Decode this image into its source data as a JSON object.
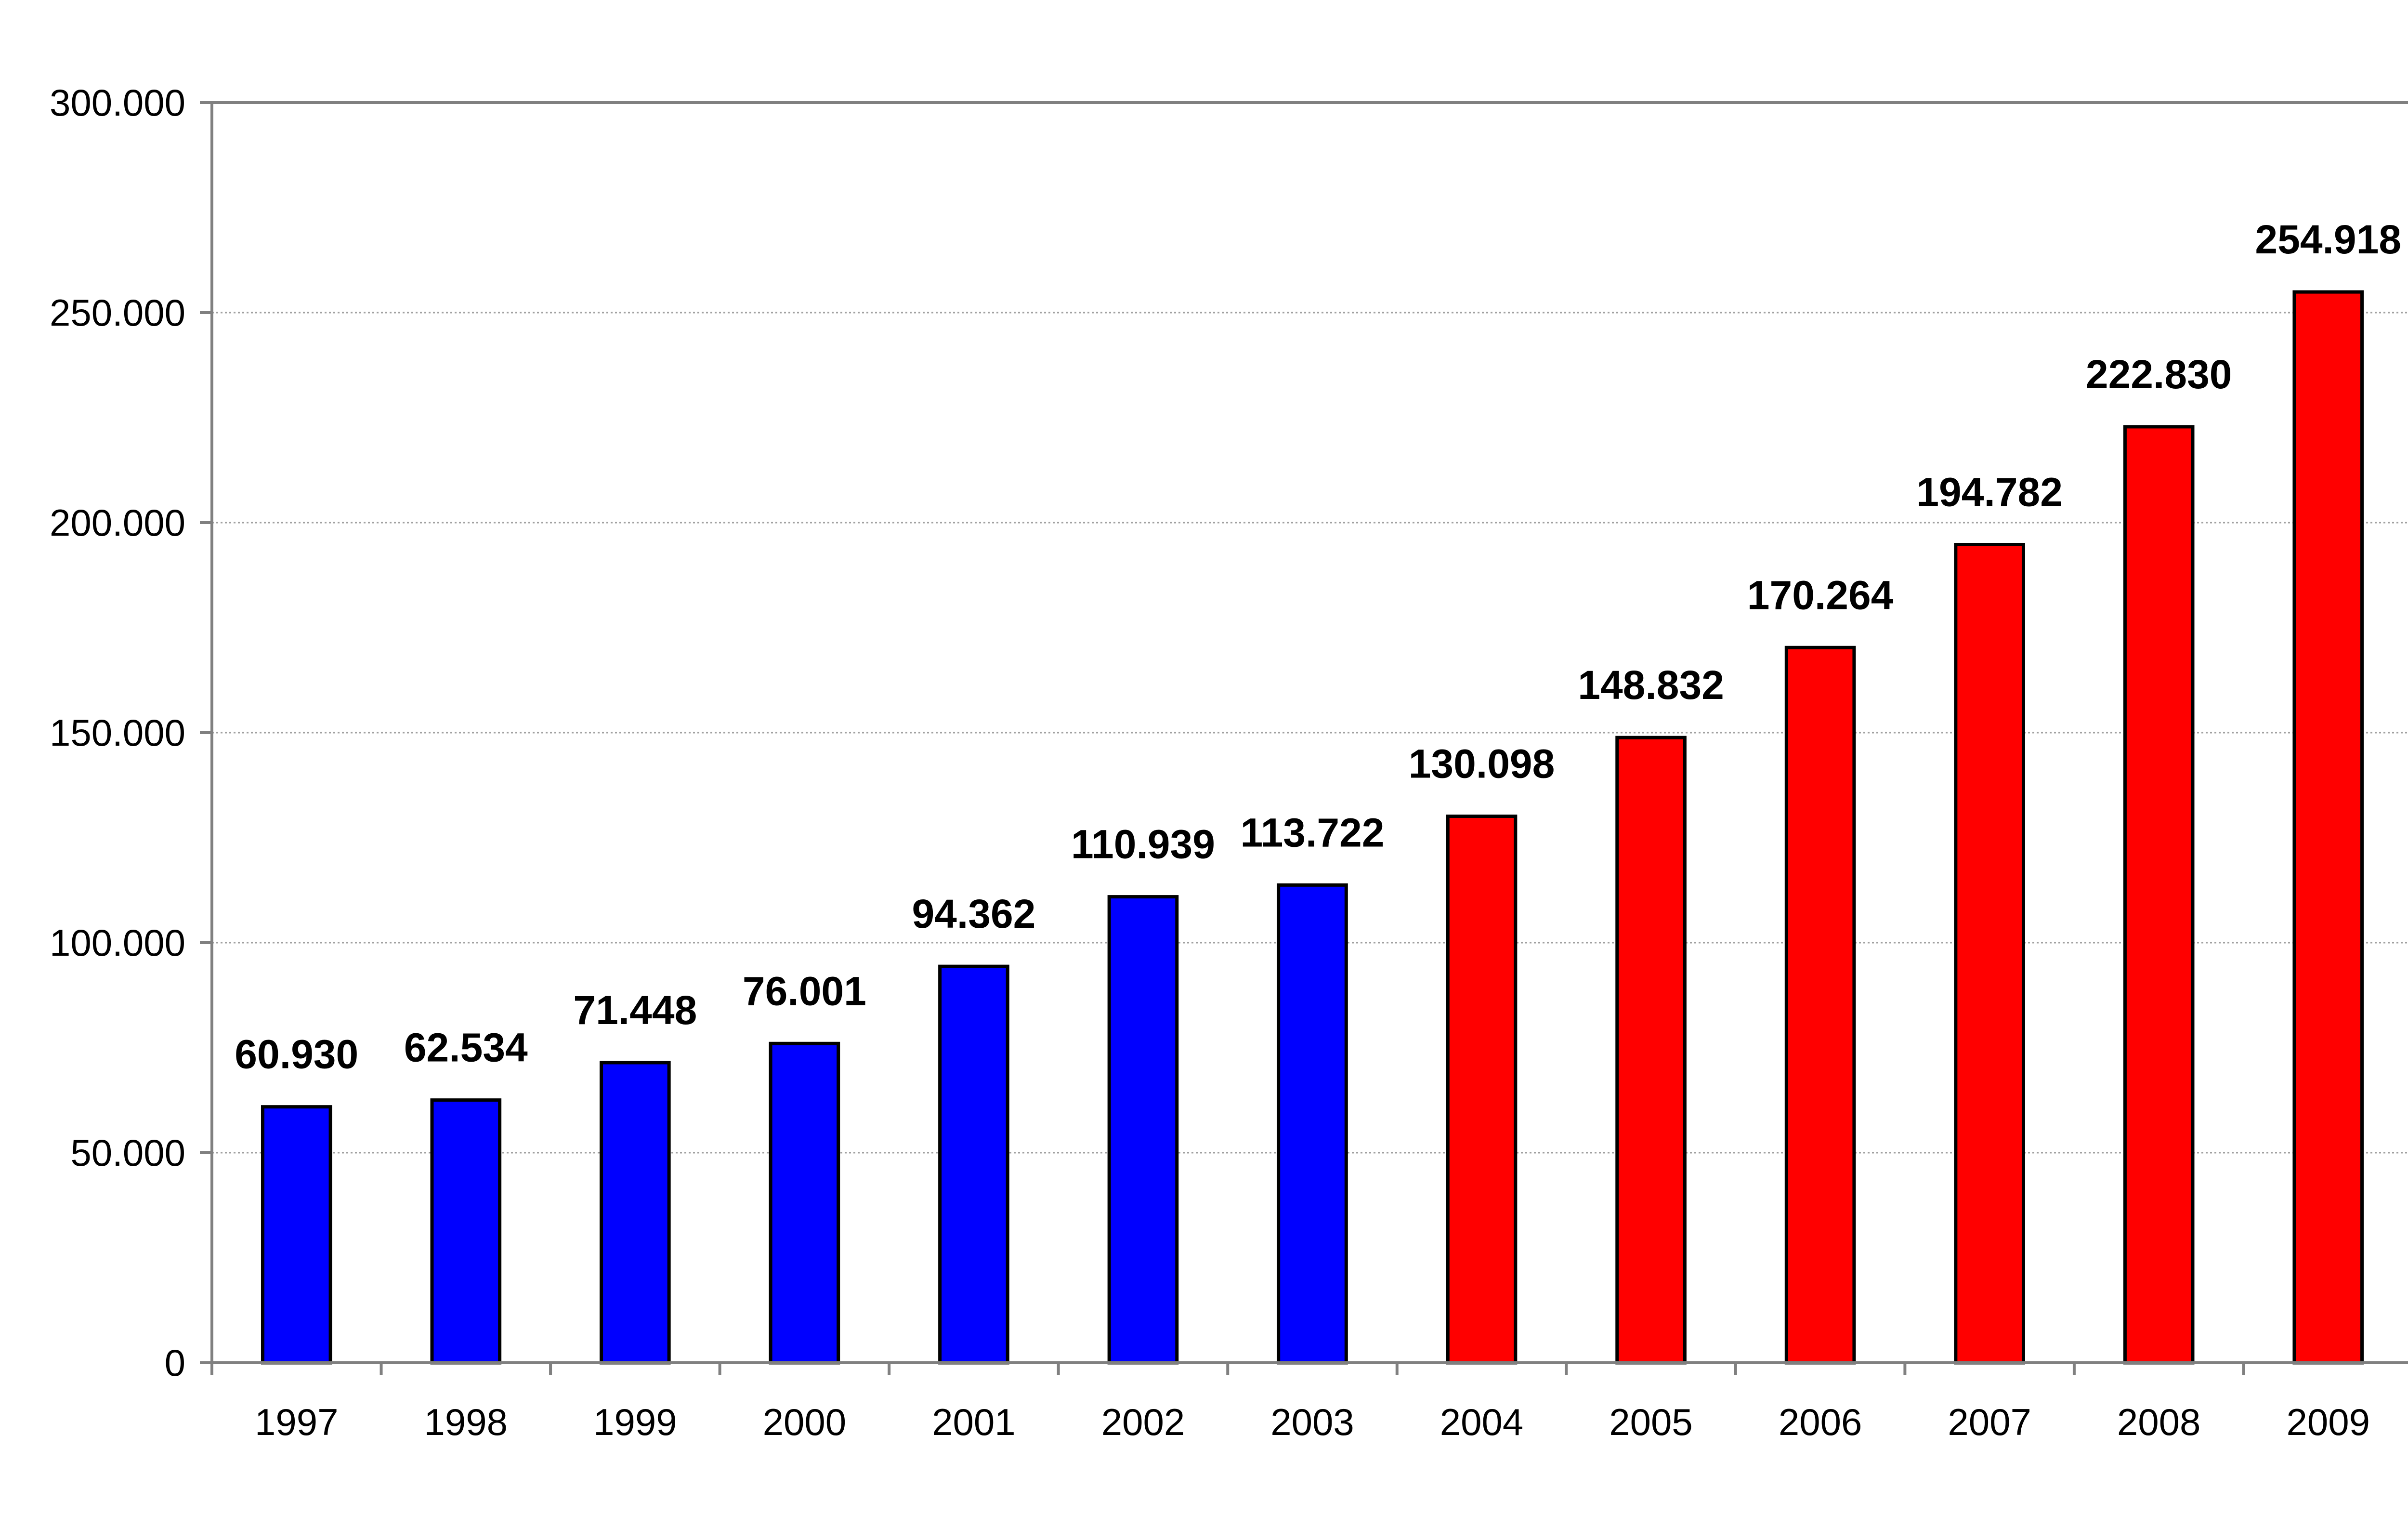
{
  "chart_data": {
    "type": "bar",
    "title": "",
    "xlabel": "",
    "ylabel": "",
    "categories": [
      "1997",
      "1998",
      "1999",
      "2000",
      "2001",
      "2002",
      "2003",
      "2004",
      "2005",
      "2006",
      "2007",
      "2008",
      "2009"
    ],
    "values": [
      60930,
      62534,
      71448,
      76001,
      94362,
      110939,
      113722,
      130098,
      148832,
      170264,
      194782,
      222830,
      254918
    ],
    "value_labels": [
      "60.930",
      "62.534",
      "71.448",
      "76.001",
      "94.362",
      "110.939",
      "113.722",
      "130.098",
      "148.832",
      "170.264",
      "194.782",
      "222.830",
      "254.918"
    ],
    "ylim": [
      0,
      300000
    ],
    "y_ticks": [
      0,
      50000,
      100000,
      150000,
      200000,
      250000,
      300000
    ],
    "y_tick_labels": [
      "0",
      "50.000",
      "100.000",
      "150.000",
      "200.000",
      "250.000",
      "300.000"
    ],
    "grid": true,
    "legend": "none",
    "bar_colors": [
      "#0000ff",
      "#0000ff",
      "#0000ff",
      "#0000ff",
      "#0000ff",
      "#0000ff",
      "#0000ff",
      "#ff0000",
      "#ff0000",
      "#ff0000",
      "#ff0000",
      "#ff0000",
      "#ff0000"
    ],
    "colors": {
      "series_a": "#0000ff",
      "series_b": "#ff0000",
      "axis": "#808080",
      "grid": "#a0a0a0",
      "bar_outline": "#000000"
    }
  }
}
